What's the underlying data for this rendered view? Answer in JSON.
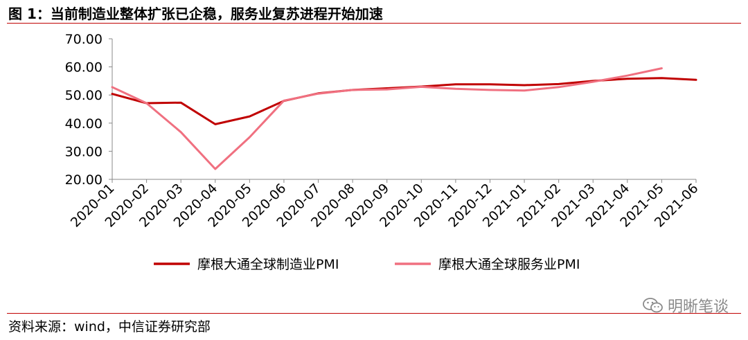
{
  "page": {
    "title": "图 1：当前制造业整体扩张已企稳，服务业复苏进程开始加速",
    "source": "资料来源：wind，中信证券研究部",
    "watermark": "明晰笔谈"
  },
  "chart_data": {
    "type": "line",
    "title": "",
    "xlabel": "",
    "ylabel": "",
    "ylim": [
      20,
      70
    ],
    "yticks": [
      "20.00",
      "30.00",
      "40.00",
      "50.00",
      "60.00",
      "70.00"
    ],
    "grid": false,
    "legend_position": "bottom",
    "categories": [
      "2020-01",
      "2020-02",
      "2020-03",
      "2020-04",
      "2020-05",
      "2020-06",
      "2020-07",
      "2020-08",
      "2020-09",
      "2020-10",
      "2020-11",
      "2020-12",
      "2021-01",
      "2021-02",
      "2021-03",
      "2021-04",
      "2021-05",
      "2021-06"
    ],
    "series": [
      {
        "name": "摩根大通全球制造业PMI",
        "color": "#c00000",
        "values": [
          50.4,
          47.1,
          47.3,
          39.6,
          42.4,
          47.9,
          50.6,
          51.8,
          52.4,
          53.0,
          53.8,
          53.8,
          53.5,
          53.9,
          55.0,
          55.8,
          56.0,
          55.4
        ]
      },
      {
        "name": "摩根大通全球服务业PMI",
        "color": "#f07080",
        "values": [
          52.8,
          47.1,
          36.8,
          23.7,
          35.0,
          48.0,
          50.5,
          51.8,
          52.0,
          52.9,
          52.2,
          51.8,
          51.6,
          52.8,
          54.7,
          56.9,
          59.5,
          null
        ]
      }
    ]
  }
}
